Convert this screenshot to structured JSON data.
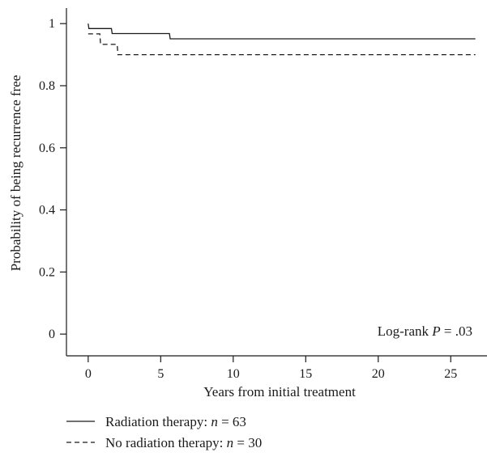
{
  "chart_data": {
    "type": "line",
    "subtype": "kaplan-meier step",
    "xlabel": "Years from initial treatment",
    "ylabel": "Probability of being recurrence free",
    "xlim": [
      -1.5,
      27.5
    ],
    "ylim": [
      -0.07,
      1.05
    ],
    "xticks": [
      0,
      5,
      10,
      15,
      20,
      25
    ],
    "yticks": [
      0,
      0.2,
      0.4,
      0.6,
      0.8,
      1
    ],
    "xtick_labels": [
      "0",
      "5",
      "10",
      "15",
      "20",
      "25"
    ],
    "ytick_labels": [
      "0",
      "0.2",
      "0.4",
      "0.6",
      "0.8",
      "1"
    ],
    "grid": false,
    "annotation": {
      "prefix": "Log-rank ",
      "p_symbol": "P",
      "suffix": " = .03"
    },
    "legend": {
      "placement": "bottom-left",
      "entries": [
        {
          "label": "Radiation therapy: ",
          "n_symbol": "n",
          "n_text": " = 63",
          "style": "solid"
        },
        {
          "label": "No radiation therapy: ",
          "n_symbol": "n",
          "n_text": " = 30",
          "style": "dashed"
        }
      ]
    },
    "series": [
      {
        "name": "Radiation therapy",
        "style": "solid",
        "points": [
          [
            0,
            1.0
          ],
          [
            0.05,
            0.984
          ],
          [
            1.6,
            0.984
          ],
          [
            1.65,
            0.968
          ],
          [
            5.6,
            0.968
          ],
          [
            5.65,
            0.951
          ],
          [
            26.7,
            0.951
          ]
        ]
      },
      {
        "name": "No radiation therapy",
        "style": "dashed",
        "points": [
          [
            0,
            0.967
          ],
          [
            0.8,
            0.967
          ],
          [
            0.85,
            0.933
          ],
          [
            2.0,
            0.933
          ],
          [
            2.05,
            0.9
          ],
          [
            26.7,
            0.9
          ]
        ]
      }
    ]
  }
}
